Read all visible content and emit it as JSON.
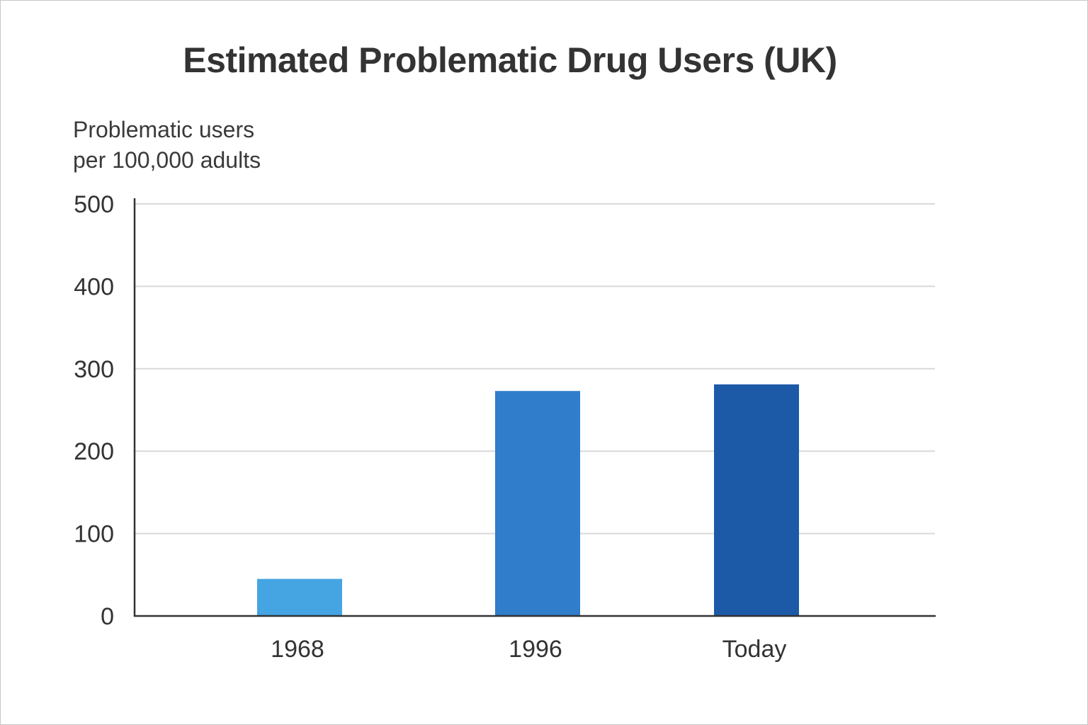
{
  "chart_data": {
    "type": "bar",
    "title": "Estimated Problematic Drug Users (UK)",
    "ylabel_lines": [
      "Problematic users",
      "per 100,000 adults"
    ],
    "xlabel": "",
    "categories": [
      "1968",
      "1996",
      "Today"
    ],
    "values": [
      45,
      273,
      281
    ],
    "colors": [
      "#45a5e3",
      "#2f7dcb",
      "#1c5aa8"
    ],
    "ylim": [
      0,
      500
    ],
    "yticks": [
      0,
      100,
      200,
      300,
      400,
      500
    ],
    "grid": true,
    "legend": "none"
  }
}
